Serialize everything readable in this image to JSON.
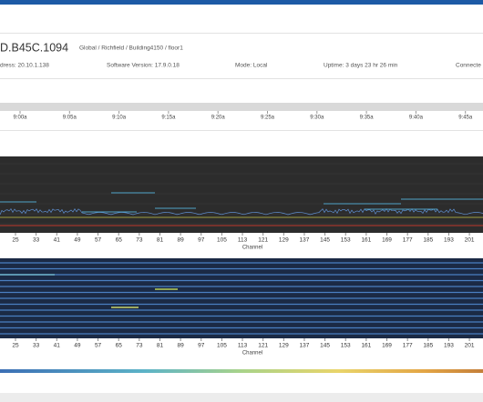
{
  "header": {
    "device": "D.B45C.1094",
    "location": "Global / Richfield / Building4150 / floor1"
  },
  "details": [
    "dress: 20.10.1.138",
    "Software Version: 17.9.0.18",
    "Mode: Local",
    "Uptime: 3 days 23 hr 26 min",
    "Connecte"
  ],
  "timeline": {
    "ticks": [
      "9:00a",
      "9:05a",
      "9:10a",
      "9:15a",
      "9:20a",
      "9:25a",
      "9:30a",
      "9:35a",
      "9:40a",
      "9:45a"
    ]
  },
  "spectrum": {
    "channels": [
      25,
      33,
      41,
      49,
      57,
      65,
      73,
      81,
      89,
      97,
      105,
      113,
      121,
      129,
      137,
      145,
      153,
      161,
      169,
      177,
      185,
      193,
      201
    ],
    "axis_label": "Channel"
  },
  "waterfall": {
    "channels": [
      25,
      33,
      41,
      49,
      57,
      65,
      73,
      81,
      89,
      97,
      105,
      113,
      121,
      129,
      137,
      145,
      153,
      161,
      169,
      177,
      185,
      193,
      201
    ],
    "axis_label": "Channel"
  }
}
